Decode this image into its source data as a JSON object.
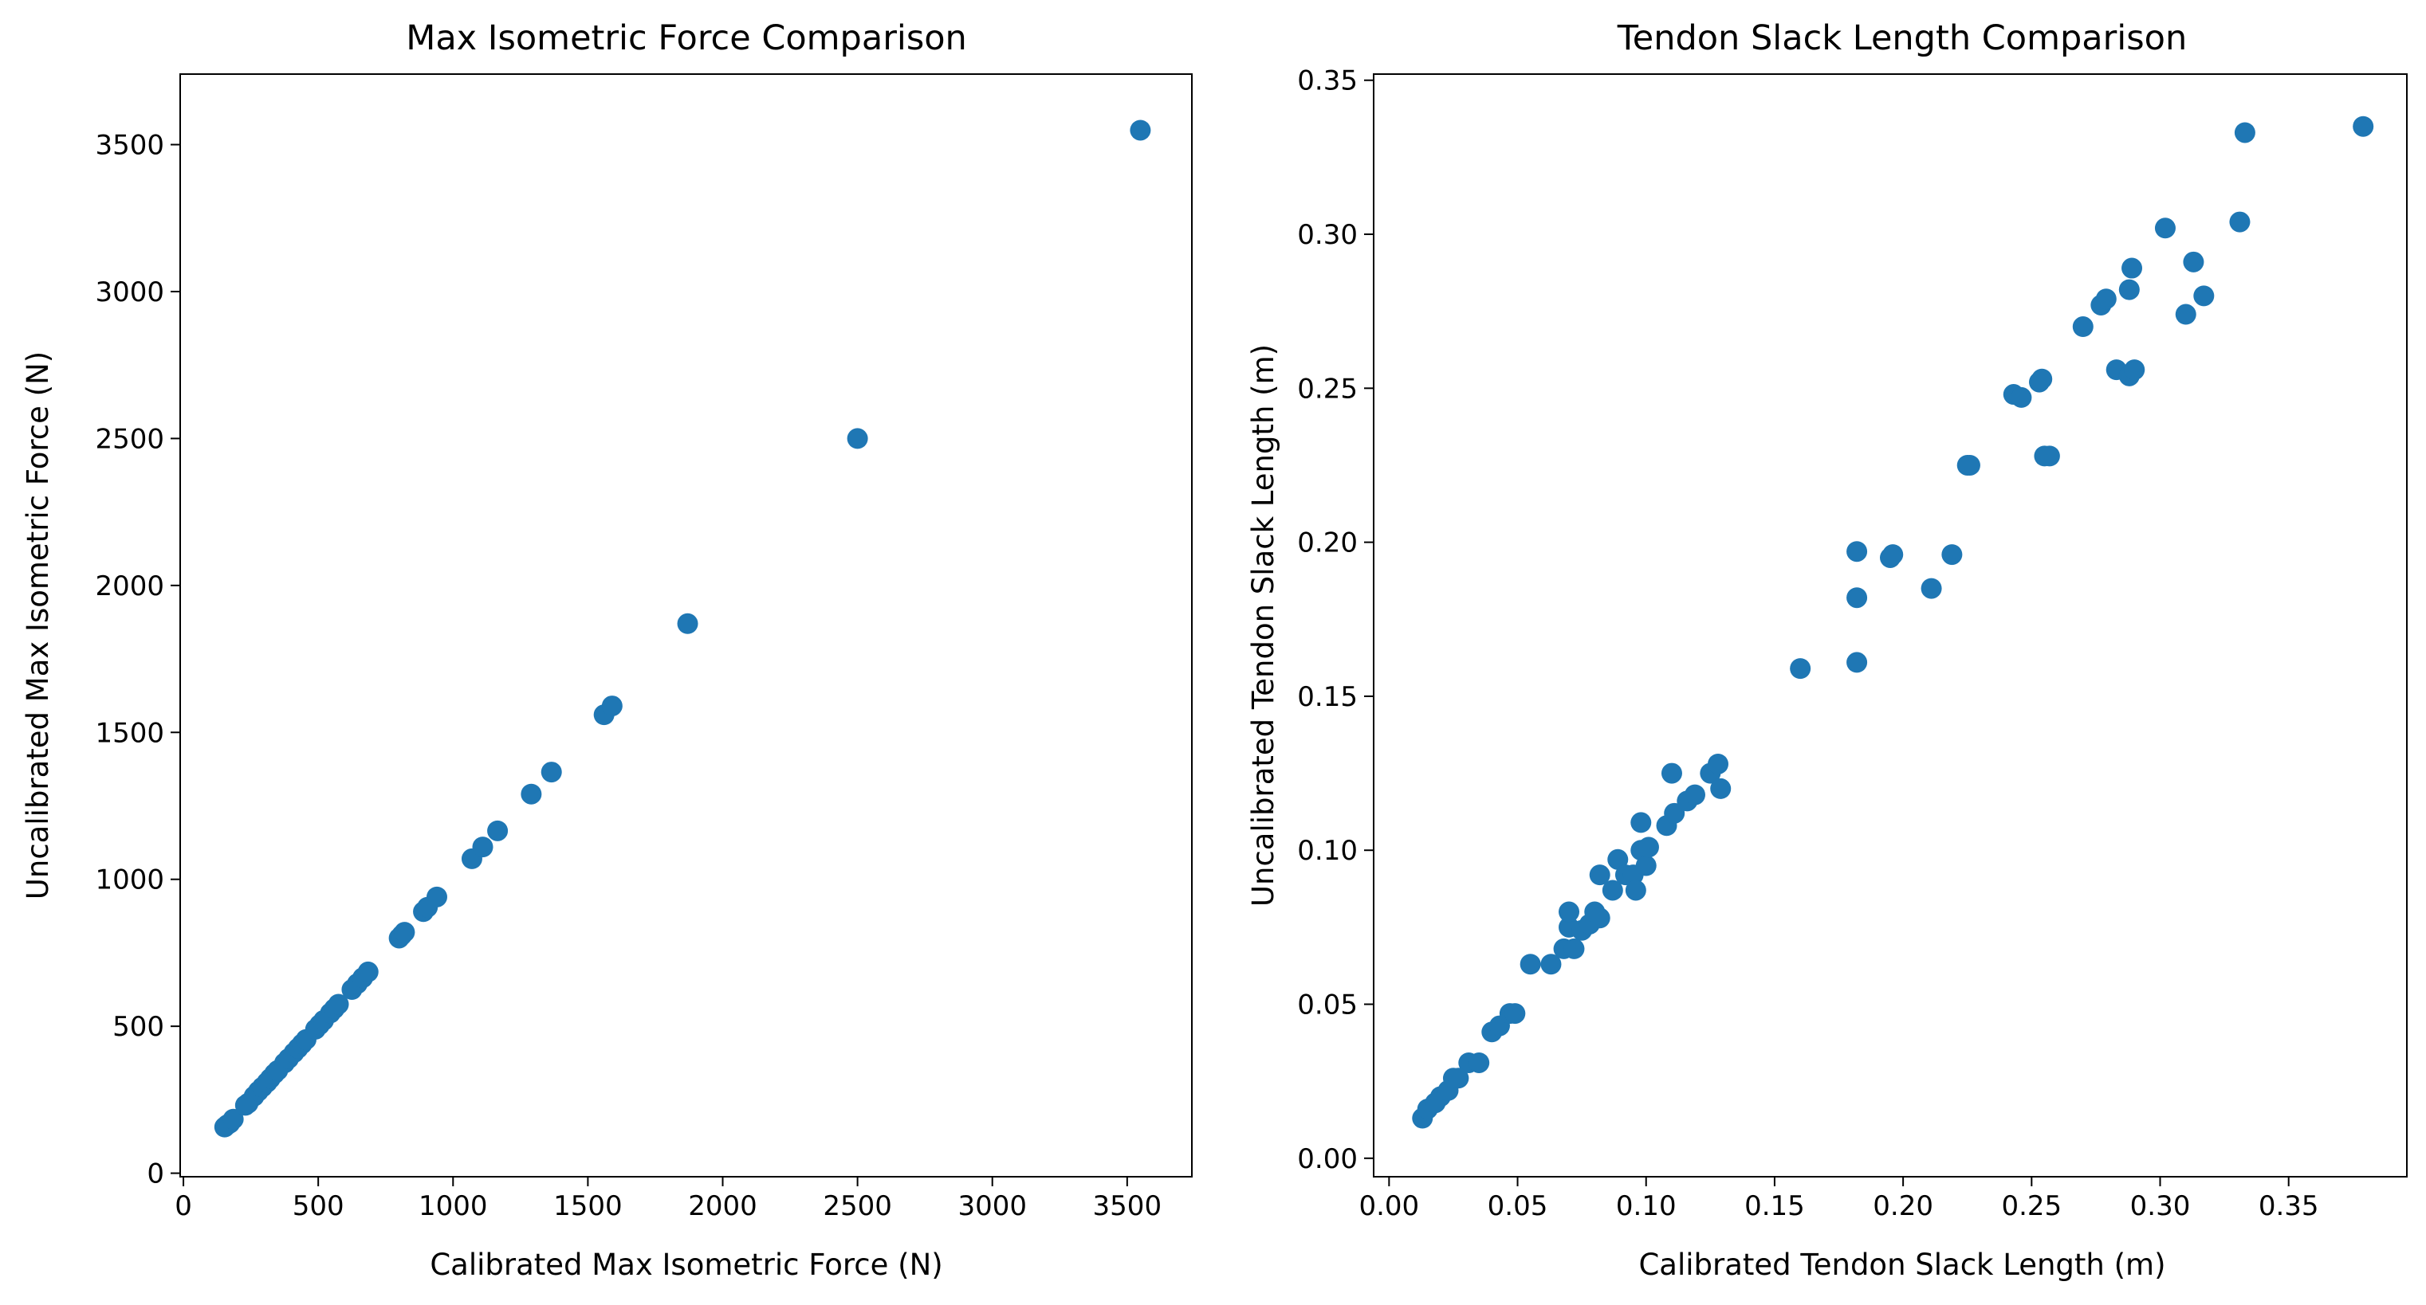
{
  "chart_data": [
    {
      "type": "scatter",
      "title": "Max Isometric Force Comparison",
      "xlabel": "Calibrated Max Isometric Force (N)",
      "ylabel": "Uncalibrated Max Isometric Force (N)",
      "xlim": [
        -12,
        3740
      ],
      "ylim": [
        -12,
        3740
      ],
      "xticks": [
        0,
        500,
        1000,
        1500,
        2000,
        2500,
        3000,
        3500
      ],
      "yticks": [
        0,
        500,
        1000,
        1500,
        2000,
        2500,
        3000,
        3500
      ],
      "tick_labels": {
        "x": [
          "0",
          "500",
          "1000",
          "1500",
          "2000",
          "2500",
          "3000",
          "3500"
        ],
        "y": [
          "0",
          "500",
          "1000",
          "1500",
          "2000",
          "2500",
          "3000",
          "3500"
        ]
      },
      "color": "#1f77b4",
      "grid": false,
      "points": [
        {
          "x": 153,
          "y": 157
        },
        {
          "x": 163,
          "y": 165
        },
        {
          "x": 172,
          "y": 170
        },
        {
          "x": 185,
          "y": 184
        },
        {
          "x": 230,
          "y": 231
        },
        {
          "x": 240,
          "y": 238
        },
        {
          "x": 262,
          "y": 262
        },
        {
          "x": 278,
          "y": 279
        },
        {
          "x": 293,
          "y": 293
        },
        {
          "x": 310,
          "y": 309
        },
        {
          "x": 322,
          "y": 322
        },
        {
          "x": 338,
          "y": 339
        },
        {
          "x": 350,
          "y": 350
        },
        {
          "x": 375,
          "y": 375
        },
        {
          "x": 390,
          "y": 390
        },
        {
          "x": 410,
          "y": 410
        },
        {
          "x": 425,
          "y": 425
        },
        {
          "x": 440,
          "y": 440
        },
        {
          "x": 455,
          "y": 455
        },
        {
          "x": 490,
          "y": 490
        },
        {
          "x": 505,
          "y": 505
        },
        {
          "x": 520,
          "y": 520
        },
        {
          "x": 545,
          "y": 545
        },
        {
          "x": 560,
          "y": 560
        },
        {
          "x": 575,
          "y": 575
        },
        {
          "x": 625,
          "y": 625
        },
        {
          "x": 645,
          "y": 645
        },
        {
          "x": 665,
          "y": 665
        },
        {
          "x": 685,
          "y": 685
        },
        {
          "x": 800,
          "y": 800
        },
        {
          "x": 810,
          "y": 810
        },
        {
          "x": 820,
          "y": 820
        },
        {
          "x": 890,
          "y": 890
        },
        {
          "x": 905,
          "y": 905
        },
        {
          "x": 940,
          "y": 940
        },
        {
          "x": 1070,
          "y": 1070
        },
        {
          "x": 1110,
          "y": 1110
        },
        {
          "x": 1165,
          "y": 1165
        },
        {
          "x": 1290,
          "y": 1290
        },
        {
          "x": 1365,
          "y": 1365
        },
        {
          "x": 1560,
          "y": 1560
        },
        {
          "x": 1590,
          "y": 1590
        },
        {
          "x": 1870,
          "y": 1870
        },
        {
          "x": 2500,
          "y": 2500
        },
        {
          "x": 3549,
          "y": 3549
        }
      ]
    },
    {
      "type": "scatter",
      "title": "Tendon Slack Length Comparison",
      "xlabel": "Calibrated Tendon Slack Length (m)",
      "ylabel": "Uncalibrated Tendon Slack Length (m)",
      "xlim": [
        -0.006,
        0.396
      ],
      "ylim": [
        -0.006,
        0.352
      ],
      "xticks": [
        0.0,
        0.05,
        0.1,
        0.15,
        0.2,
        0.25,
        0.3,
        0.35
      ],
      "yticks": [
        0.0,
        0.05,
        0.1,
        0.15,
        0.2,
        0.25,
        0.3,
        0.35
      ],
      "tick_labels": {
        "x": [
          "0.00",
          "0.05",
          "0.10",
          "0.15",
          "0.20",
          "0.25",
          "0.30",
          "0.35"
        ],
        "y": [
          "0.00",
          "0.05",
          "0.10",
          "0.15",
          "0.20",
          "0.25",
          "0.30",
          "0.35"
        ]
      },
      "color": "#1f77b4",
      "grid": false,
      "points": [
        {
          "x": 0.013,
          "y": 0.013
        },
        {
          "x": 0.015,
          "y": 0.016
        },
        {
          "x": 0.018,
          "y": 0.018
        },
        {
          "x": 0.02,
          "y": 0.02
        },
        {
          "x": 0.023,
          "y": 0.022
        },
        {
          "x": 0.025,
          "y": 0.026
        },
        {
          "x": 0.027,
          "y": 0.026
        },
        {
          "x": 0.031,
          "y": 0.031
        },
        {
          "x": 0.035,
          "y": 0.031
        },
        {
          "x": 0.04,
          "y": 0.041
        },
        {
          "x": 0.043,
          "y": 0.043
        },
        {
          "x": 0.047,
          "y": 0.047
        },
        {
          "x": 0.049,
          "y": 0.047
        },
        {
          "x": 0.055,
          "y": 0.063
        },
        {
          "x": 0.063,
          "y": 0.063
        },
        {
          "x": 0.068,
          "y": 0.068
        },
        {
          "x": 0.07,
          "y": 0.075
        },
        {
          "x": 0.07,
          "y": 0.08
        },
        {
          "x": 0.072,
          "y": 0.068
        },
        {
          "x": 0.075,
          "y": 0.074
        },
        {
          "x": 0.078,
          "y": 0.076
        },
        {
          "x": 0.08,
          "y": 0.08
        },
        {
          "x": 0.082,
          "y": 0.078
        },
        {
          "x": 0.082,
          "y": 0.092
        },
        {
          "x": 0.087,
          "y": 0.087
        },
        {
          "x": 0.089,
          "y": 0.097
        },
        {
          "x": 0.092,
          "y": 0.092
        },
        {
          "x": 0.095,
          "y": 0.092
        },
        {
          "x": 0.096,
          "y": 0.087
        },
        {
          "x": 0.098,
          "y": 0.109
        },
        {
          "x": 0.098,
          "y": 0.1
        },
        {
          "x": 0.1,
          "y": 0.095
        },
        {
          "x": 0.101,
          "y": 0.101
        },
        {
          "x": 0.108,
          "y": 0.108
        },
        {
          "x": 0.11,
          "y": 0.125
        },
        {
          "x": 0.111,
          "y": 0.112
        },
        {
          "x": 0.116,
          "y": 0.116
        },
        {
          "x": 0.119,
          "y": 0.118
        },
        {
          "x": 0.125,
          "y": 0.125
        },
        {
          "x": 0.128,
          "y": 0.128
        },
        {
          "x": 0.129,
          "y": 0.12
        },
        {
          "x": 0.16,
          "y": 0.159
        },
        {
          "x": 0.182,
          "y": 0.197
        },
        {
          "x": 0.182,
          "y": 0.182
        },
        {
          "x": 0.182,
          "y": 0.161
        },
        {
          "x": 0.195,
          "y": 0.195
        },
        {
          "x": 0.196,
          "y": 0.196
        },
        {
          "x": 0.211,
          "y": 0.185
        },
        {
          "x": 0.219,
          "y": 0.196
        },
        {
          "x": 0.225,
          "y": 0.225
        },
        {
          "x": 0.226,
          "y": 0.225
        },
        {
          "x": 0.243,
          "y": 0.248
        },
        {
          "x": 0.246,
          "y": 0.247
        },
        {
          "x": 0.253,
          "y": 0.252
        },
        {
          "x": 0.254,
          "y": 0.253
        },
        {
          "x": 0.255,
          "y": 0.228
        },
        {
          "x": 0.257,
          "y": 0.228
        },
        {
          "x": 0.27,
          "y": 0.27
        },
        {
          "x": 0.277,
          "y": 0.277
        },
        {
          "x": 0.279,
          "y": 0.279
        },
        {
          "x": 0.283,
          "y": 0.256
        },
        {
          "x": 0.288,
          "y": 0.254
        },
        {
          "x": 0.288,
          "y": 0.282
        },
        {
          "x": 0.289,
          "y": 0.289
        },
        {
          "x": 0.29,
          "y": 0.256
        },
        {
          "x": 0.302,
          "y": 0.302
        },
        {
          "x": 0.31,
          "y": 0.274
        },
        {
          "x": 0.313,
          "y": 0.291
        },
        {
          "x": 0.317,
          "y": 0.28
        },
        {
          "x": 0.331,
          "y": 0.304
        },
        {
          "x": 0.333,
          "y": 0.333
        },
        {
          "x": 0.379,
          "y": 0.335
        }
      ]
    }
  ]
}
